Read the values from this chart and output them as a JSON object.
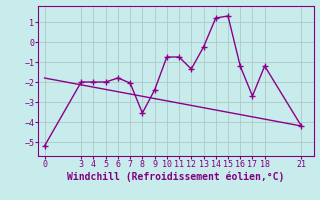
{
  "xlabel": "Windchill (Refroidissement éolien,°C)",
  "line1_x": [
    0,
    3,
    4,
    5,
    6,
    7,
    8,
    9,
    10,
    11,
    12,
    13,
    14,
    15,
    16,
    17,
    18,
    21
  ],
  "line1_y": [
    -5.2,
    -2.0,
    -2.0,
    -2.0,
    -1.8,
    -2.05,
    -3.55,
    -2.4,
    -0.75,
    -0.75,
    -1.35,
    -0.25,
    1.2,
    1.3,
    -1.2,
    -2.7,
    -1.2,
    -4.2
  ],
  "line2_x": [
    0,
    21
  ],
  "line2_y": [
    -1.8,
    -4.2
  ],
  "line_color": "#8b008b",
  "markersize": 5,
  "linewidth": 1.0,
  "ylim": [
    -5.7,
    1.8
  ],
  "xlim": [
    -0.5,
    22
  ],
  "yticks": [
    -5,
    -4,
    -3,
    -2,
    -1,
    0,
    1
  ],
  "xticks": [
    0,
    3,
    4,
    5,
    6,
    7,
    8,
    9,
    10,
    11,
    12,
    13,
    14,
    15,
    16,
    17,
    18,
    21
  ],
  "bg_color": "#c8ecec",
  "grid_color": "#b0c8c8",
  "text_color": "#800080",
  "xlabel_fontsize": 7,
  "tick_fontsize": 6
}
